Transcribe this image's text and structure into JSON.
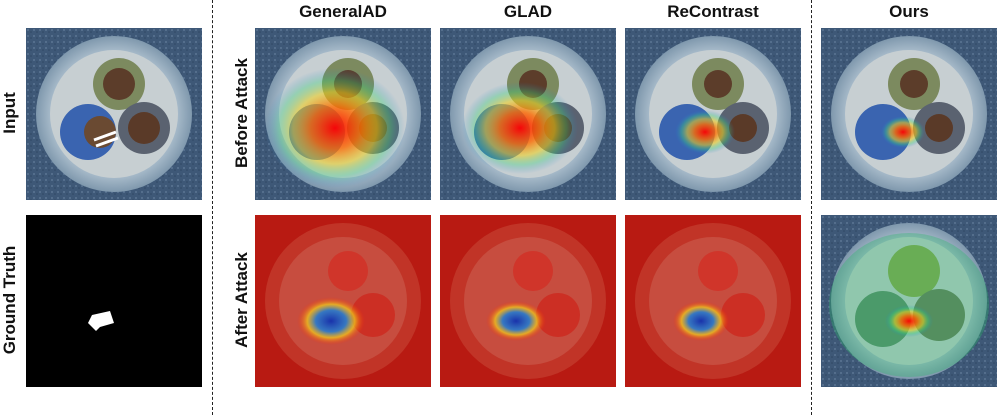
{
  "column_headers": {
    "general_ad": "GeneralAD",
    "glad": "GLAD",
    "recontrast": "ReContrast",
    "ours": "Ours"
  },
  "row_headers": {
    "input": "Input",
    "ground_truth": "Ground Truth",
    "before_attack": "Before Attack",
    "after_attack": "After Attack"
  },
  "colors": {
    "heat_hot": "#e01010",
    "heat_warm": "#f2c21a",
    "heat_cool": "#1d7fd8",
    "background": "#ffffff"
  }
}
